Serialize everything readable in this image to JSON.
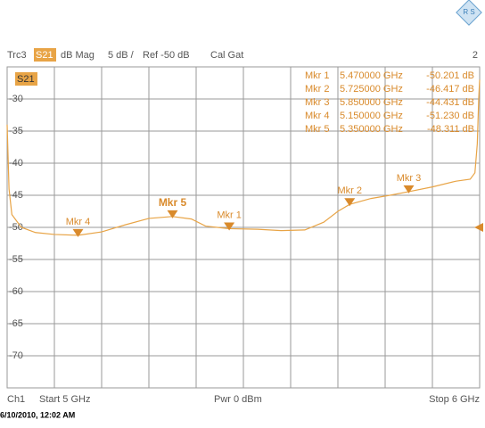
{
  "chart_data": {
    "type": "line",
    "header": {
      "trace": "Trc3",
      "parameter": "S21",
      "format": "dB Mag",
      "scale": "5 dB /",
      "reference": "Ref -50 dB",
      "calibration": "Cal Gat",
      "window": "2"
    },
    "footer": {
      "channel": "Ch1",
      "start": "Start 5 GHz",
      "power": "Pwr 0 dBm",
      "stop": "Stop 6 GHz",
      "timestamp": "6/10/2010, 12:02 AM"
    },
    "xlim": [
      5,
      6
    ],
    "ylim": [
      -75,
      -25
    ],
    "yticks": [
      -30,
      -35,
      -40,
      -45,
      -50,
      -55,
      -60,
      -65,
      -70
    ],
    "reference_level": -50,
    "grid": true,
    "series": [
      {
        "name": "S21",
        "color": "#e8a446",
        "x": [
          5.0,
          5.004,
          5.01,
          5.03,
          5.06,
          5.1,
          5.15,
          5.2,
          5.25,
          5.3,
          5.35,
          5.39,
          5.42,
          5.47,
          5.53,
          5.58,
          5.63,
          5.67,
          5.7,
          5.725,
          5.77,
          5.81,
          5.85,
          5.9,
          5.95,
          5.98,
          5.99,
          5.995,
          5.998,
          6.0
        ],
        "values": [
          -34,
          -44,
          -48,
          -50,
          -50.8,
          -51.1,
          -51.23,
          -50.7,
          -49.6,
          -48.6,
          -48.311,
          -48.7,
          -49.8,
          -50.201,
          -50.3,
          -50.5,
          -50.4,
          -49.2,
          -47.5,
          -46.417,
          -45.5,
          -45.0,
          -44.431,
          -43.7,
          -42.8,
          -42.5,
          -41.5,
          -37,
          -30,
          -27
        ]
      }
    ],
    "markers": [
      {
        "name": "Mkr 1",
        "x": 5.47,
        "y": -50.201,
        "x_label": "5.470000 GHz",
        "y_label": "-50.201 dB"
      },
      {
        "name": "Mkr 2",
        "x": 5.725,
        "y": -46.417,
        "x_label": "5.725000 GHz",
        "y_label": "-46.417 dB"
      },
      {
        "name": "Mkr 3",
        "x": 5.85,
        "y": -44.431,
        "x_label": "5.850000 GHz",
        "y_label": "-44.431 dB"
      },
      {
        "name": "Mkr 4",
        "x": 5.15,
        "y": -51.23,
        "x_label": "5.150000 GHz",
        "y_label": "-51.230 dB"
      },
      {
        "name": "Mkr 5",
        "x": 5.35,
        "y": -48.311,
        "x_label": "5.350000 GHz",
        "y_label": "-48.311 dB"
      }
    ],
    "active_marker": "Mkr 5"
  }
}
